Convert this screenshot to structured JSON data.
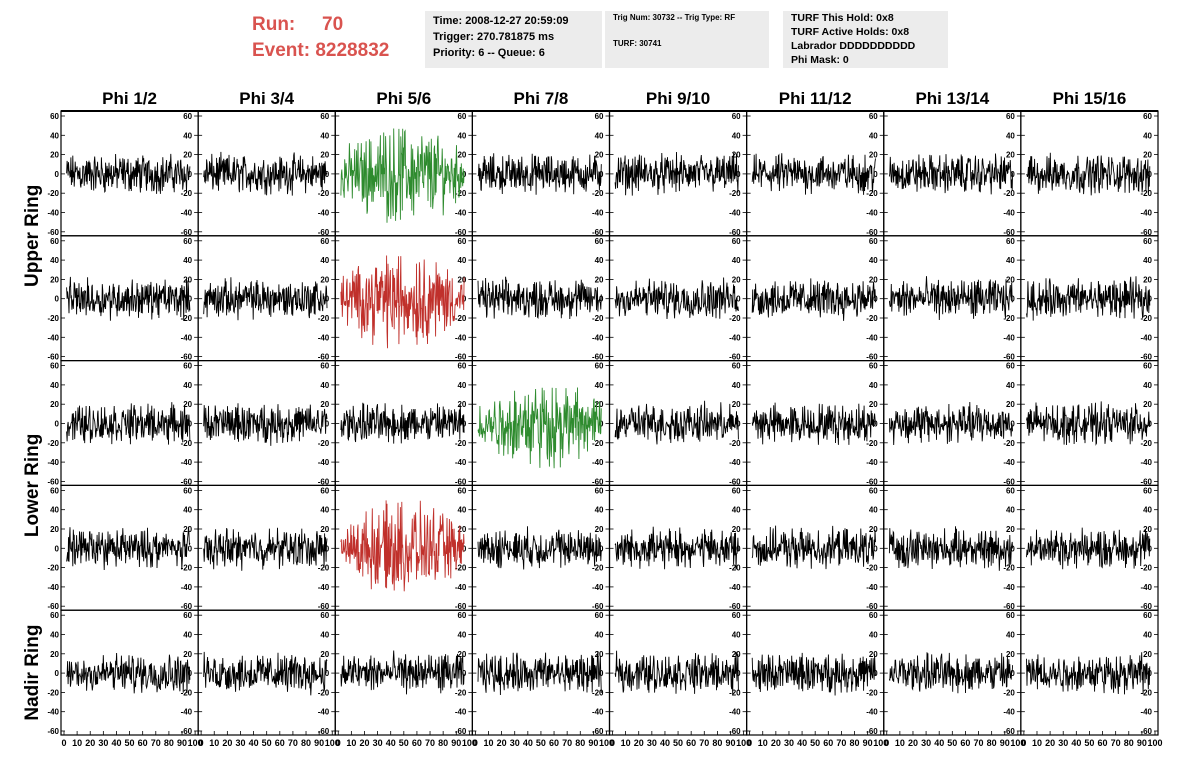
{
  "header": {
    "run_label": "Run:",
    "run_value": "70",
    "event_label": "Event:",
    "event_value": "8228832",
    "time_box": [
      "Time: 2008-12-27 20:59:09",
      "Trigger: 270.781875 ms",
      "Priority: 6 -- Queue: 6"
    ],
    "trig_box": [
      "Trig Num: 30732 -- Trig Type: RF",
      "",
      "TURF: 30741"
    ],
    "turf_box": [
      "TURF This Hold: 0x8",
      "TURF Active Holds: 0x8",
      "Labrador DDDDDDDDDD",
      "Phi Mask: 0"
    ]
  },
  "colors": {
    "header_text": "#d9534f",
    "info_box_bg": "#ececec",
    "trace_default": "#000000",
    "trace_green": "#2e8b2e",
    "trace_red": "#c0302b"
  },
  "chart_data": {
    "type": "line",
    "description_rows": [
      "Upper Ring",
      "Upper Ring",
      "Lower Ring",
      "Lower Ring",
      "Nadir Ring"
    ],
    "column_labels": [
      "Phi 1/2",
      "Phi 3/4",
      "Phi 5/6",
      "Phi 7/8",
      "Phi 9/10",
      "Phi 11/12",
      "Phi 13/14",
      "Phi 15/16"
    ],
    "row_labels": [
      "Upper Ring",
      "Lower Ring",
      "Nadir Ring"
    ],
    "xlim": [
      0,
      100
    ],
    "ylim": [
      -60,
      60
    ],
    "y_ticks": [
      -60,
      -40,
      -20,
      0,
      20,
      40,
      60
    ],
    "x_ticks": [
      0,
      10,
      20,
      30,
      40,
      50,
      60,
      70,
      80,
      90,
      100
    ],
    "samples_per_trace": 260,
    "highlighted": [
      {
        "row": 0,
        "col": 2,
        "color": "green",
        "amplitude": 30
      },
      {
        "row": 1,
        "col": 2,
        "color": "red",
        "amplitude": 30
      },
      {
        "row": 2,
        "col": 3,
        "color": "green",
        "amplitude": 27
      },
      {
        "row": 3,
        "col": 2,
        "color": "red",
        "amplitude": 28
      }
    ],
    "default_amplitude": 14
  }
}
